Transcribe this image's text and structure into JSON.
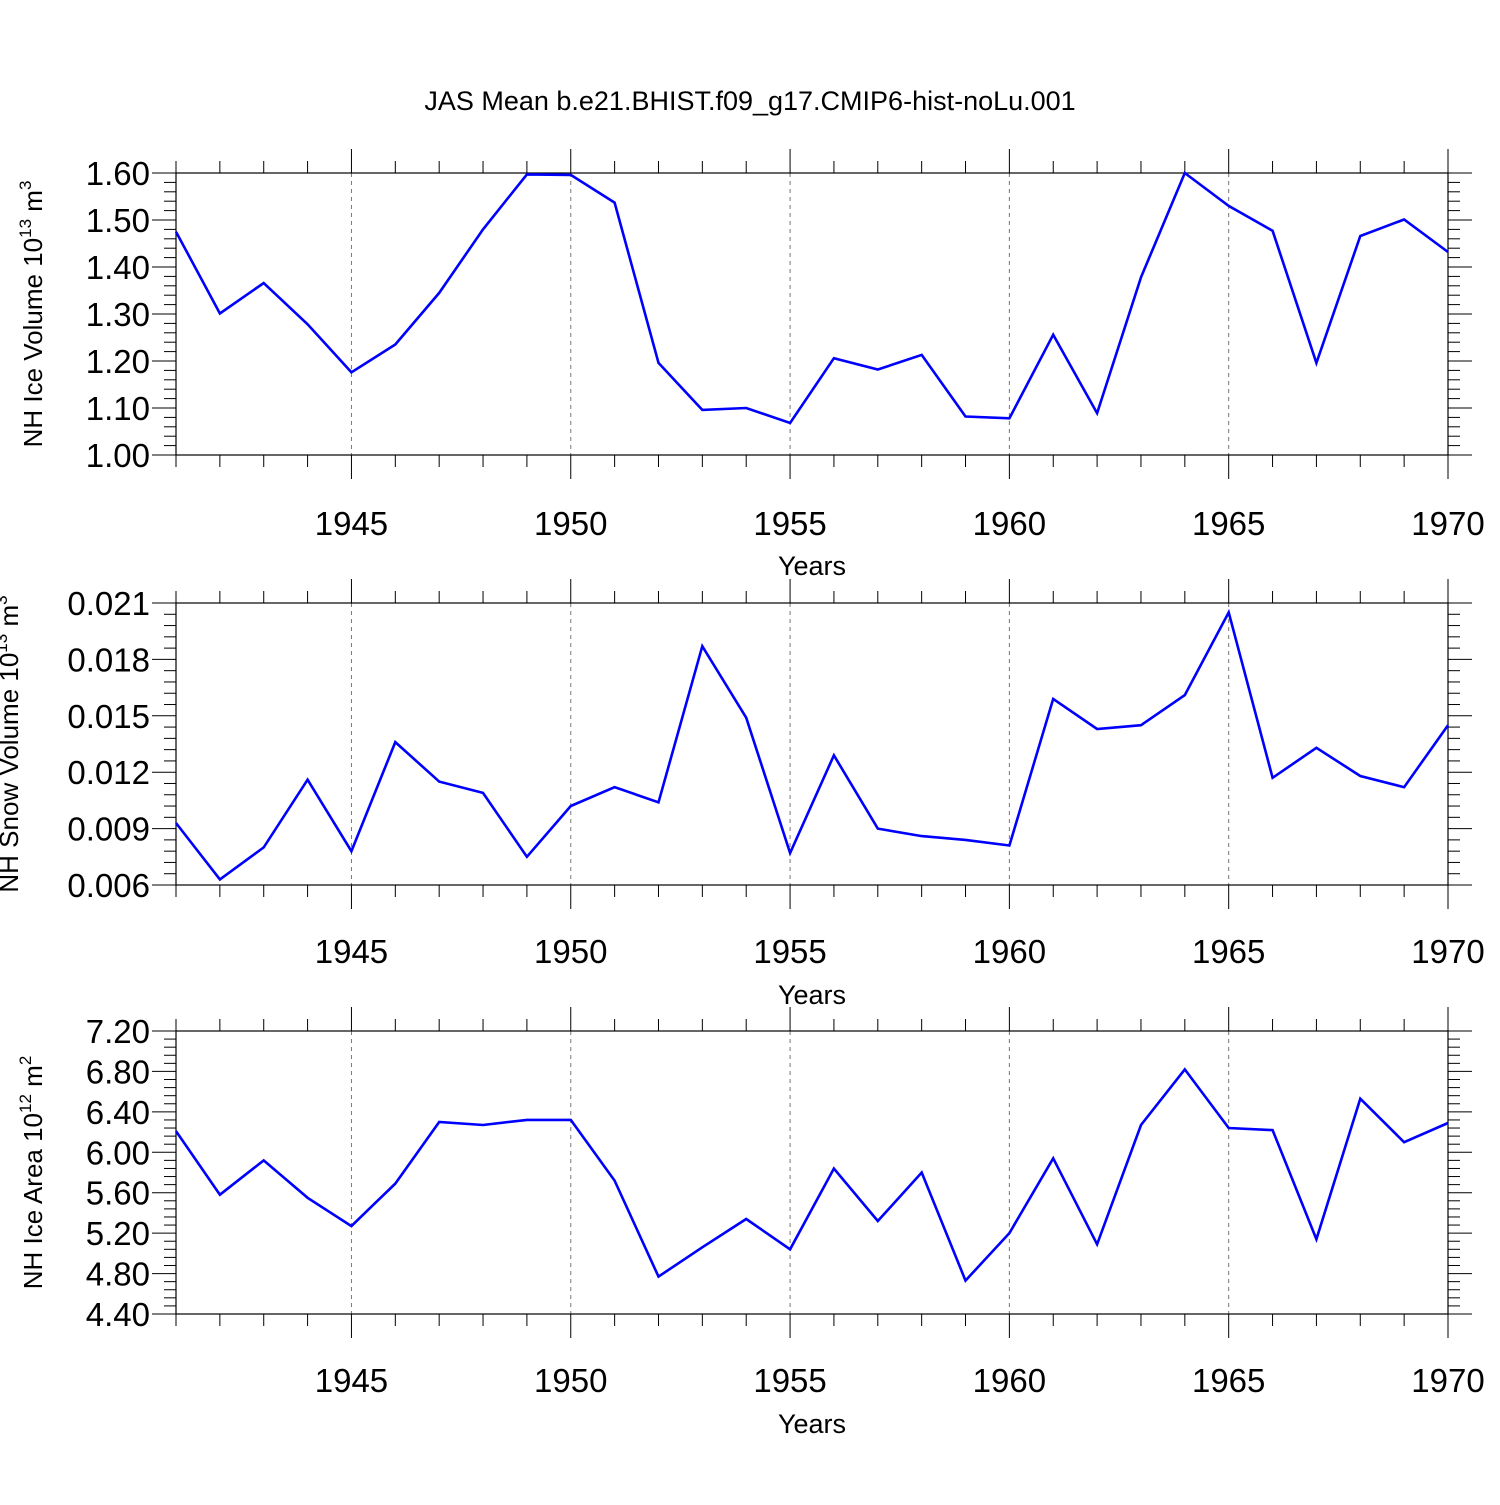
{
  "title": "JAS Mean b.e21.BHIST.f09_g17.CMIP6-hist-noLu.001",
  "line_color": "#0000ff",
  "chart_data": [
    {
      "type": "line",
      "ylabel": {
        "main": "NH Ice Volume 10",
        "exp": "13",
        "unit": " m",
        "unit_exp": "3"
      },
      "xlabel": "Years",
      "xlim": [
        1941,
        1970
      ],
      "ylim": [
        1.0,
        1.6
      ],
      "yticks": [
        "1.00",
        "1.10",
        "1.20",
        "1.30",
        "1.40",
        "1.50",
        "1.60"
      ],
      "xticks": [
        "1945",
        "1950",
        "1955",
        "1960",
        "1965",
        "1970"
      ],
      "grid": "dashed vertical at 5-year ticks",
      "series": [
        {
          "x": [
            1941,
            1942,
            1943,
            1944,
            1945,
            1946,
            1947,
            1948,
            1949,
            1950,
            1951,
            1952,
            1953,
            1954,
            1955,
            1956,
            1957,
            1958,
            1959,
            1960,
            1961,
            1962,
            1963,
            1964,
            1965,
            1966,
            1967,
            1968,
            1969,
            1970
          ],
          "y": [
            1.475,
            1.301,
            1.366,
            1.278,
            1.176,
            1.235,
            1.345,
            1.48,
            1.597,
            1.596,
            1.537,
            1.196,
            1.096,
            1.1,
            1.068,
            1.206,
            1.182,
            1.213,
            1.082,
            1.078,
            1.256,
            1.089,
            1.378,
            1.6,
            1.53,
            1.477,
            1.196,
            1.466,
            1.501,
            1.432
          ]
        }
      ]
    },
    {
      "type": "line",
      "ylabel": {
        "main": "NH Snow Volume 10",
        "exp": "13",
        "unit": " m",
        "unit_exp": "3"
      },
      "xlabel": "Years",
      "xlim": [
        1941,
        1970
      ],
      "ylim": [
        0.006,
        0.021
      ],
      "yticks": [
        "0.006",
        "0.009",
        "0.012",
        "0.015",
        "0.018",
        "0.021"
      ],
      "xticks": [
        "1945",
        "1950",
        "1955",
        "1960",
        "1965",
        "1970"
      ],
      "grid": "dashed vertical at 5-year ticks",
      "series": [
        {
          "x": [
            1941,
            1942,
            1943,
            1944,
            1945,
            1946,
            1947,
            1948,
            1949,
            1950,
            1951,
            1952,
            1953,
            1954,
            1955,
            1956,
            1957,
            1958,
            1959,
            1960,
            1961,
            1962,
            1963,
            1964,
            1965,
            1966,
            1967,
            1968,
            1969,
            1970
          ],
          "y": [
            0.0093,
            0.0063,
            0.008,
            0.0116,
            0.0078,
            0.0136,
            0.0115,
            0.0109,
            0.0075,
            0.0102,
            0.0112,
            0.0104,
            0.0187,
            0.0149,
            0.0077,
            0.0129,
            0.009,
            0.0086,
            0.0084,
            0.0081,
            0.0159,
            0.0143,
            0.0145,
            0.0161,
            0.0205,
            0.0117,
            0.0133,
            0.0118,
            0.0112,
            0.0145
          ]
        }
      ]
    },
    {
      "type": "line",
      "ylabel": {
        "main": "NH Ice Area 10",
        "exp": "12",
        "unit": " m",
        "unit_exp": "2"
      },
      "xlabel": "Years",
      "xlim": [
        1941,
        1970
      ],
      "ylim": [
        4.4,
        7.2
      ],
      "yticks": [
        "4.40",
        "4.80",
        "5.20",
        "5.60",
        "6.00",
        "6.40",
        "6.80",
        "7.20"
      ],
      "xticks": [
        "1945",
        "1950",
        "1955",
        "1960",
        "1965",
        "1970"
      ],
      "grid": "dashed vertical at 5-year ticks",
      "series": [
        {
          "x": [
            1941,
            1942,
            1943,
            1944,
            1945,
            1946,
            1947,
            1948,
            1949,
            1950,
            1951,
            1952,
            1953,
            1954,
            1955,
            1956,
            1957,
            1958,
            1959,
            1960,
            1961,
            1962,
            1963,
            1964,
            1965,
            1966,
            1967,
            1968,
            1969,
            1970
          ],
          "y": [
            6.21,
            5.58,
            5.92,
            5.55,
            5.27,
            5.69,
            6.3,
            6.27,
            6.32,
            6.32,
            5.72,
            4.77,
            5.06,
            5.34,
            5.04,
            5.84,
            5.32,
            5.8,
            4.73,
            5.2,
            5.94,
            5.09,
            6.27,
            6.82,
            6.24,
            6.22,
            5.14,
            6.53,
            6.1,
            6.29
          ]
        }
      ]
    }
  ]
}
